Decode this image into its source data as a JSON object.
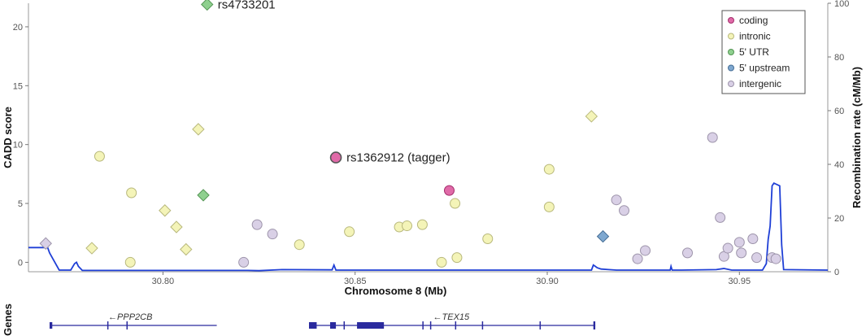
{
  "chart_data": {
    "type": "scatter",
    "title": "",
    "xlabel": "Chromosome 8 (Mb)",
    "ylabel": "CADD score",
    "y2label": "Recombination rate (cM/Mb)",
    "xlim": [
      30.765,
      30.973
    ],
    "ylim": [
      -0.8,
      22
    ],
    "y2lim": [
      0,
      100
    ],
    "x_ticks": [
      30.8,
      30.85,
      30.9,
      30.95
    ],
    "x_tick_labels": [
      "30.80",
      "30.85",
      "30.90",
      "30.95"
    ],
    "y_ticks": [
      0,
      5,
      10,
      15,
      20
    ],
    "y2_ticks": [
      0,
      20,
      40,
      60,
      80,
      100
    ],
    "legend_position": "top-right",
    "categories": [
      {
        "key": "coding",
        "label": "coding",
        "color": "#e06aa8"
      },
      {
        "key": "intronic",
        "label": "intronic",
        "color": "#f4f4b8"
      },
      {
        "key": "utr5",
        "label": "5' UTR",
        "color": "#8fd08f"
      },
      {
        "key": "upstream5",
        "label": "5' upstream",
        "color": "#7fa8d0"
      },
      {
        "key": "intergenic",
        "label": "intergenic",
        "color": "#d9d0e6"
      }
    ],
    "points": [
      {
        "x": 30.7695,
        "y": 1.6,
        "cat": "intergenic",
        "shape": "diamond"
      },
      {
        "x": 30.7815,
        "y": 1.2,
        "cat": "intronic",
        "shape": "diamond"
      },
      {
        "x": 30.7835,
        "y": 9.0,
        "cat": "intronic",
        "shape": "circle"
      },
      {
        "x": 30.7915,
        "y": 0.0,
        "cat": "intronic",
        "shape": "circle"
      },
      {
        "x": 30.7918,
        "y": 5.9,
        "cat": "intronic",
        "shape": "circle"
      },
      {
        "x": 30.8005,
        "y": 4.4,
        "cat": "intronic",
        "shape": "diamond"
      },
      {
        "x": 30.8035,
        "y": 3.0,
        "cat": "intronic",
        "shape": "diamond"
      },
      {
        "x": 30.806,
        "y": 1.1,
        "cat": "intronic",
        "shape": "diamond"
      },
      {
        "x": 30.8092,
        "y": 11.3,
        "cat": "intronic",
        "shape": "diamond"
      },
      {
        "x": 30.8105,
        "y": 5.7,
        "cat": "utr5",
        "shape": "diamond"
      },
      {
        "x": 30.8115,
        "y": 21.9,
        "cat": "utr5",
        "shape": "diamond"
      },
      {
        "x": 30.821,
        "y": 0.0,
        "cat": "intergenic",
        "shape": "circle"
      },
      {
        "x": 30.8245,
        "y": 3.2,
        "cat": "intergenic",
        "shape": "circle"
      },
      {
        "x": 30.8285,
        "y": 2.4,
        "cat": "intergenic",
        "shape": "circle"
      },
      {
        "x": 30.8355,
        "y": 1.5,
        "cat": "intronic",
        "shape": "circle"
      },
      {
        "x": 30.845,
        "y": 8.9,
        "cat": "coding",
        "shape": "circle",
        "big": true
      },
      {
        "x": 30.8485,
        "y": 2.6,
        "cat": "intronic",
        "shape": "circle"
      },
      {
        "x": 30.8615,
        "y": 3.0,
        "cat": "intronic",
        "shape": "circle"
      },
      {
        "x": 30.8635,
        "y": 3.1,
        "cat": "intronic",
        "shape": "circle"
      },
      {
        "x": 30.8675,
        "y": 3.2,
        "cat": "intronic",
        "shape": "circle"
      },
      {
        "x": 30.8725,
        "y": 0.0,
        "cat": "intronic",
        "shape": "circle"
      },
      {
        "x": 30.8745,
        "y": 6.1,
        "cat": "coding",
        "shape": "circle"
      },
      {
        "x": 30.876,
        "y": 5.0,
        "cat": "intronic",
        "shape": "circle"
      },
      {
        "x": 30.8765,
        "y": 0.4,
        "cat": "intronic",
        "shape": "circle"
      },
      {
        "x": 30.8845,
        "y": 2.0,
        "cat": "intronic",
        "shape": "circle"
      },
      {
        "x": 30.9005,
        "y": 7.9,
        "cat": "intronic",
        "shape": "circle"
      },
      {
        "x": 30.9005,
        "y": 4.7,
        "cat": "intronic",
        "shape": "circle"
      },
      {
        "x": 30.9115,
        "y": 12.4,
        "cat": "intronic",
        "shape": "diamond"
      },
      {
        "x": 30.9145,
        "y": 2.2,
        "cat": "upstream5",
        "shape": "diamond"
      },
      {
        "x": 30.918,
        "y": 5.3,
        "cat": "intergenic",
        "shape": "circle"
      },
      {
        "x": 30.92,
        "y": 4.4,
        "cat": "intergenic",
        "shape": "circle"
      },
      {
        "x": 30.9235,
        "y": 0.3,
        "cat": "intergenic",
        "shape": "circle"
      },
      {
        "x": 30.9255,
        "y": 1.0,
        "cat": "intergenic",
        "shape": "circle"
      },
      {
        "x": 30.9365,
        "y": 0.8,
        "cat": "intergenic",
        "shape": "circle"
      },
      {
        "x": 30.943,
        "y": 10.6,
        "cat": "intergenic",
        "shape": "circle"
      },
      {
        "x": 30.946,
        "y": 0.5,
        "cat": "intergenic",
        "shape": "circle"
      },
      {
        "x": 30.947,
        "y": 1.2,
        "cat": "intergenic",
        "shape": "circle"
      },
      {
        "x": 30.945,
        "y": 3.8,
        "cat": "intergenic",
        "shape": "circle"
      },
      {
        "x": 30.95,
        "y": 1.7,
        "cat": "intergenic",
        "shape": "circle"
      },
      {
        "x": 30.9505,
        "y": 0.8,
        "cat": "intergenic",
        "shape": "circle"
      },
      {
        "x": 30.9535,
        "y": 2.0,
        "cat": "intergenic",
        "shape": "circle"
      },
      {
        "x": 30.9545,
        "y": 0.4,
        "cat": "intergenic",
        "shape": "circle"
      },
      {
        "x": 30.9585,
        "y": 0.4,
        "cat": "intergenic",
        "shape": "circle"
      },
      {
        "x": 30.9595,
        "y": 0.3,
        "cat": "intergenic",
        "shape": "circle"
      }
    ],
    "annotations": [
      {
        "label": "rs4733201",
        "x": 30.8115,
        "y": 21.9
      },
      {
        "label": "rs1362912 (tagger)",
        "x": 30.845,
        "y": 8.9
      }
    ],
    "recombination": {
      "color": "#1f3fd6",
      "x": [
        30.765,
        30.77,
        30.7705,
        30.773,
        30.776,
        30.777,
        30.7775,
        30.778,
        30.779,
        30.822,
        30.825,
        30.831,
        30.844,
        30.8445,
        30.845,
        30.876,
        30.9115,
        30.912,
        30.9125,
        30.913,
        30.914,
        30.916,
        30.918,
        30.93,
        30.932,
        30.9322,
        30.9325,
        30.935,
        30.944,
        30.946,
        30.948,
        30.956,
        30.957,
        30.9575,
        30.958,
        30.9585,
        30.959,
        30.9605,
        30.961,
        30.9615,
        30.973
      ],
      "y": [
        9,
        9,
        7,
        0.6,
        0.6,
        3,
        3.5,
        2,
        0.5,
        0.5,
        0.4,
        0.8,
        0.7,
        2.5,
        0.6,
        0.6,
        0.6,
        2.5,
        2.0,
        1.5,
        1.0,
        0.8,
        0.6,
        0.6,
        0.6,
        2.0,
        0.6,
        0.6,
        0.8,
        1.2,
        0.6,
        0.6,
        3,
        12,
        17,
        32,
        33,
        32,
        10,
        0.8,
        0.6
      ]
    },
    "genes_track": {
      "label": "Genes",
      "genes": [
        {
          "name": "←PPP2CB",
          "start": 30.7705,
          "end": 30.814,
          "exons": [
            [
              30.7705,
              30.7712
            ],
            [
              30.7855,
              30.7858
            ],
            [
              30.7905,
              30.7908
            ]
          ],
          "label_x": 30.7915
        },
        {
          "name": "←TEX15",
          "start": 30.838,
          "end": 30.9125,
          "exons": [
            [
              30.838,
              30.84
            ],
            [
              30.8435,
              30.845
            ],
            [
              30.847,
              30.8473
            ],
            [
              30.8505,
              30.8575
            ],
            [
              30.8675,
              30.8678
            ],
            [
              30.8695,
              30.8698
            ],
            [
              30.876,
              30.8763
            ],
            [
              30.883,
              30.8833
            ],
            [
              30.898,
              30.8983
            ],
            [
              30.912,
              30.9125
            ]
          ],
          "label_x": 30.875
        }
      ]
    }
  }
}
